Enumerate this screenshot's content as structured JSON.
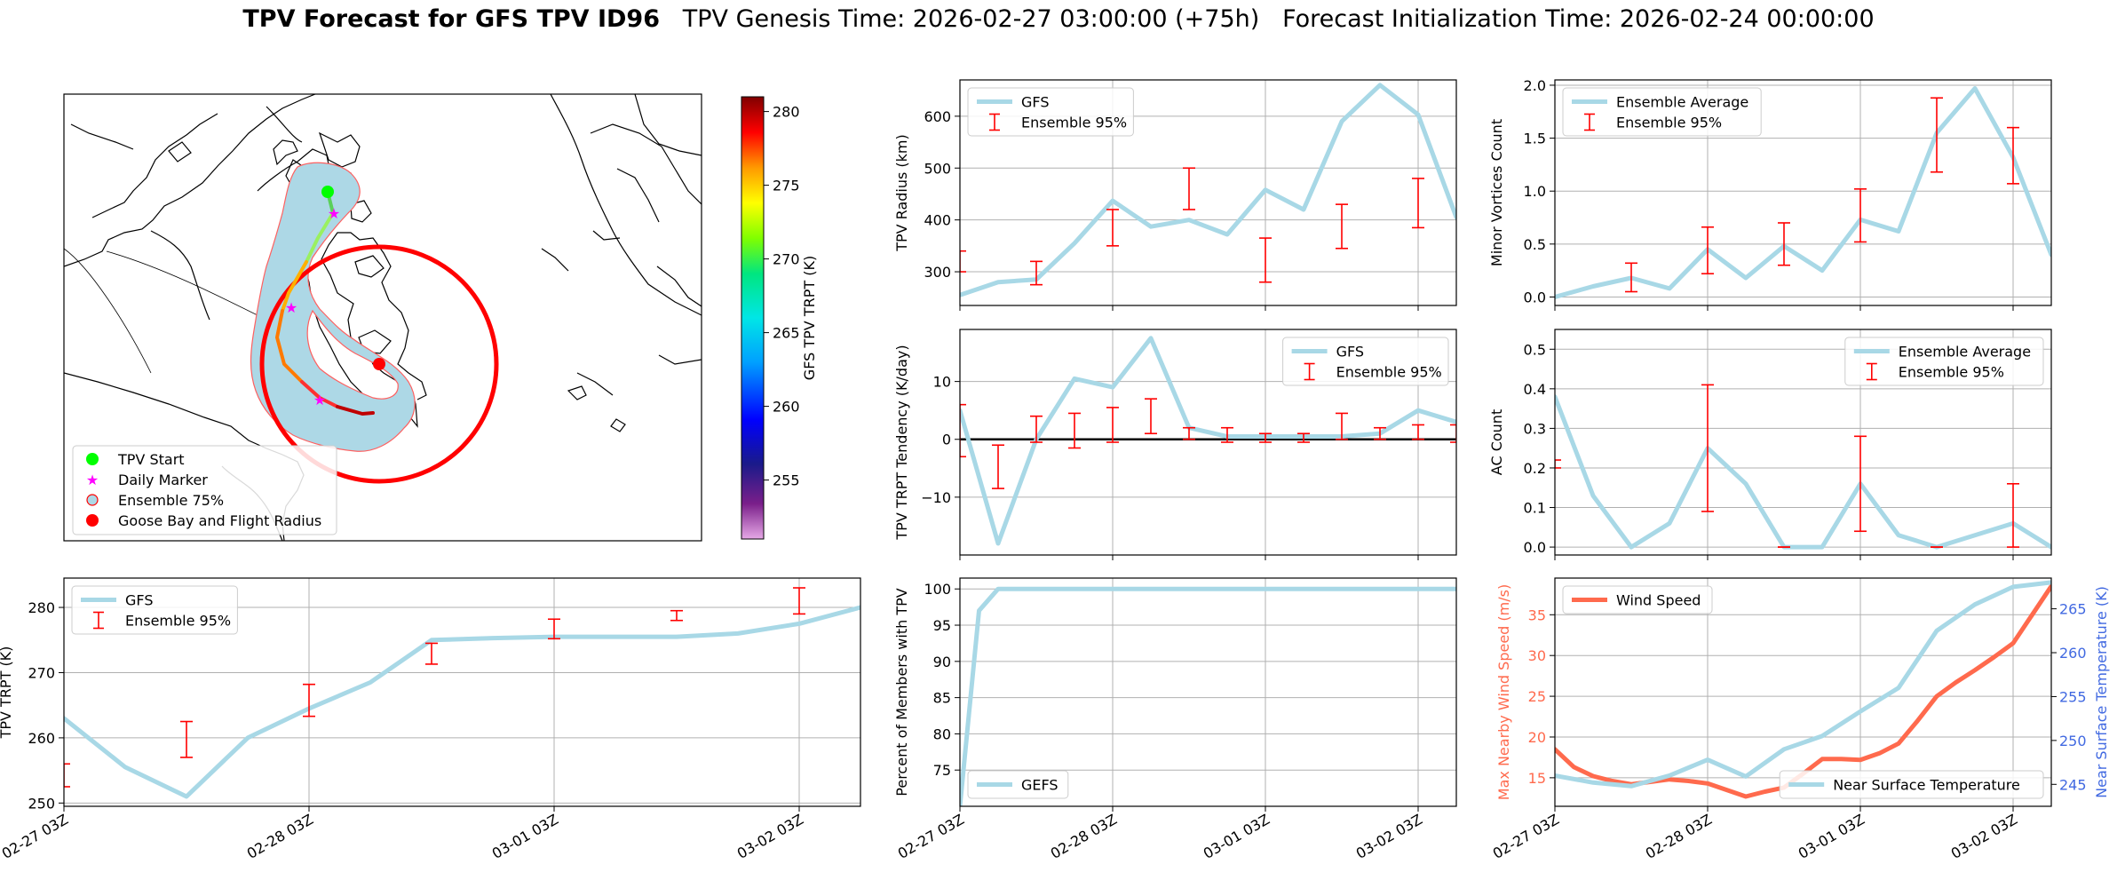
{
  "title": {
    "bold": "TPV Forecast for GFS TPV ID96",
    "genesis": "TPV Genesis Time: 2026-02-27 03:00:00 (+75h)",
    "init": "Forecast Initialization Time: 2026-02-24 00:00:00"
  },
  "colors": {
    "gfs": "#a8d8e6",
    "ensemble": "#ff0000",
    "wind": "#ff6a4d",
    "temp_axis": "#4169e1",
    "grid": "#b0b0b0"
  },
  "map": {
    "colorbar": {
      "label": "GFS TPV TRPT (K)",
      "range": [
        251,
        281
      ],
      "ticks": [
        255,
        260,
        265,
        270,
        275,
        280
      ]
    },
    "legend": [
      {
        "label": "TPV Start",
        "icon": "green-dot-icon"
      },
      {
        "label": "Daily Marker",
        "icon": "magenta-star-icon"
      },
      {
        "label": "Ensemble 75%",
        "icon": "blue-circle-icon"
      },
      {
        "label": "Goose Bay and Flight Radius",
        "icon": "red-dot-icon"
      }
    ]
  },
  "time_axis": {
    "labels": [
      "02-27 03Z",
      "02-28 03Z",
      "03-01 03Z",
      "03-02 03Z"
    ],
    "label_positions": [
      0,
      24,
      48,
      72
    ],
    "x_range": [
      0,
      78
    ]
  },
  "chart_data": [
    {
      "id": "trpt",
      "type": "line",
      "title": "",
      "xlabel": "",
      "ylabel": "TPV TRPT (K)",
      "ylim": [
        249.5,
        284.5
      ],
      "yticks": [
        250,
        260,
        270,
        280
      ],
      "legend": {
        "position": "top-left",
        "entries": [
          "GFS",
          "Ensemble 95%"
        ]
      },
      "series": [
        {
          "name": "GFS",
          "x": [
            0,
            6,
            12,
            18,
            24,
            30,
            36,
            42,
            48,
            54,
            60,
            66,
            72,
            78
          ],
          "values": [
            263,
            255.5,
            251,
            260,
            264.5,
            268.5,
            275,
            275.3,
            275.5,
            275.5,
            275.5,
            276,
            277.5,
            280
          ]
        },
        {
          "name": "Ensemble 95%",
          "type": "errorbar",
          "x": [
            0,
            12,
            24,
            36,
            48,
            60,
            72
          ],
          "low": [
            252.5,
            257,
            263.3,
            271.3,
            275.2,
            278,
            279
          ],
          "high": [
            256,
            262.5,
            268.2,
            274.5,
            278.2,
            279.5,
            283
          ]
        }
      ]
    },
    {
      "id": "radius",
      "type": "line",
      "xlabel": "",
      "ylabel": "TPV Radius (km)",
      "ylim": [
        235,
        670
      ],
      "yticks": [
        300,
        400,
        500,
        600
      ],
      "legend": {
        "position": "top-left",
        "entries": [
          "GFS",
          "Ensemble 95%"
        ]
      },
      "series": [
        {
          "name": "GFS",
          "x": [
            0,
            6,
            12,
            18,
            24,
            30,
            36,
            42,
            48,
            54,
            60,
            66,
            72,
            78
          ],
          "values": [
            255,
            280,
            285,
            355,
            437,
            387,
            400,
            372,
            458,
            420,
            590,
            660,
            603,
            405
          ]
        },
        {
          "name": "Ensemble 95%",
          "type": "errorbar",
          "x": [
            0,
            12,
            24,
            36,
            48,
            60,
            72
          ],
          "low": [
            300,
            275,
            350,
            420,
            280,
            345,
            385
          ],
          "high": [
            340,
            320,
            420,
            500,
            365,
            430,
            480
          ]
        }
      ]
    },
    {
      "id": "tendency",
      "type": "line",
      "xlabel": "",
      "ylabel": "TPV TRPT Tendency (K/day)",
      "ylim": [
        -20,
        19
      ],
      "yticks": [
        -10,
        0,
        10
      ],
      "zero_line": true,
      "legend": {
        "position": "top-right",
        "entries": [
          "GFS",
          "Ensemble 95%"
        ]
      },
      "series": [
        {
          "name": "GFS",
          "x": [
            0,
            6,
            12,
            18,
            24,
            30,
            36,
            42,
            48,
            54,
            60,
            66,
            72,
            78
          ],
          "values": [
            5,
            -18,
            0,
            10.5,
            9,
            17.5,
            2,
            0.5,
            0.5,
            0.5,
            0.5,
            1,
            5,
            3
          ]
        },
        {
          "name": "Ensemble 95%",
          "type": "errorbar",
          "x": [
            0,
            6,
            12,
            18,
            24,
            30,
            36,
            42,
            48,
            54,
            60,
            66,
            72,
            78
          ],
          "low": [
            -3,
            -8.5,
            -0.5,
            -1.5,
            -0.5,
            1,
            0,
            -0.5,
            -0.5,
            -0.5,
            0,
            0,
            0,
            -0.5
          ],
          "high": [
            6,
            -1,
            4,
            4.5,
            5.5,
            7,
            2,
            2,
            1,
            1,
            4.5,
            2,
            2.5,
            2.5
          ]
        }
      ]
    },
    {
      "id": "members",
      "type": "line",
      "xlabel": "",
      "ylabel": "Percent of Members with TPV",
      "ylim": [
        70,
        101.5
      ],
      "yticks": [
        75,
        80,
        85,
        90,
        95,
        100
      ],
      "legend": {
        "position": "bottom-left",
        "entries": [
          "GEFS"
        ]
      },
      "series": [
        {
          "name": "GEFS",
          "x": [
            0,
            3,
            6,
            78
          ],
          "values": [
            70,
            97,
            100,
            100
          ]
        }
      ]
    },
    {
      "id": "minor",
      "type": "line",
      "xlabel": "",
      "ylabel": "Minor Vortices Count",
      "ylim": [
        -0.08,
        2.05
      ],
      "yticks": [
        0.0,
        0.5,
        1.0,
        1.5,
        2.0
      ],
      "legend": {
        "position": "top-left",
        "entries": [
          "Ensemble Average",
          "Ensemble 95%"
        ]
      },
      "series": [
        {
          "name": "Ensemble Average",
          "x": [
            0,
            6,
            12,
            18,
            24,
            30,
            36,
            42,
            48,
            54,
            60,
            66,
            72,
            78
          ],
          "values": [
            0,
            0.1,
            0.18,
            0.08,
            0.45,
            0.18,
            0.48,
            0.25,
            0.73,
            0.62,
            1.55,
            1.97,
            1.32,
            0.4
          ]
        },
        {
          "name": "Ensemble 95%",
          "type": "errorbar",
          "x": [
            12,
            24,
            36,
            48,
            60,
            72
          ],
          "low": [
            0.05,
            0.22,
            0.3,
            0.52,
            1.18,
            1.07
          ],
          "high": [
            0.32,
            0.66,
            0.7,
            1.02,
            1.88,
            1.6
          ]
        }
      ]
    },
    {
      "id": "ac",
      "type": "line",
      "xlabel": "",
      "ylabel": "AC Count",
      "ylim": [
        -0.02,
        0.55
      ],
      "yticks": [
        0.0,
        0.1,
        0.2,
        0.3,
        0.4,
        0.5
      ],
      "legend": {
        "position": "top-right",
        "entries": [
          "Ensemble Average",
          "Ensemble 95%"
        ]
      },
      "series": [
        {
          "name": "Ensemble Average",
          "x": [
            0,
            6,
            12,
            18,
            24,
            30,
            36,
            42,
            48,
            54,
            60,
            66,
            72,
            78
          ],
          "values": [
            0.38,
            0.13,
            0.0,
            0.06,
            0.25,
            0.16,
            0.0,
            0.0,
            0.16,
            0.03,
            0.0,
            0.03,
            0.06,
            0.0
          ]
        },
        {
          "name": "Ensemble 95%",
          "type": "errorbar",
          "x": [
            0,
            24,
            36,
            48,
            60,
            72
          ],
          "low": [
            0.2,
            0.09,
            0.0,
            0.04,
            0.0,
            0.0
          ],
          "high": [
            0.22,
            0.41,
            0.0,
            0.28,
            0.0,
            0.16
          ]
        }
      ]
    },
    {
      "id": "wind",
      "type": "line",
      "xlabel": "",
      "ylabel": "Max Nearby Wind Speed (m/s)",
      "ylim": [
        11.5,
        39.5
      ],
      "yticks": [
        15,
        20,
        25,
        30,
        35
      ],
      "legend": {
        "position": "top-left",
        "entries": [
          "Wind Speed"
        ]
      },
      "series": [
        {
          "name": "Wind Speed",
          "x": [
            0,
            3,
            6,
            9,
            12,
            15,
            18,
            21,
            24,
            27,
            30,
            33,
            36,
            39,
            42,
            45,
            48,
            51,
            54,
            57,
            60,
            63,
            66,
            69,
            72,
            75,
            78
          ],
          "values": [
            18.5,
            16.3,
            15.2,
            14.6,
            14.2,
            14.5,
            14.8,
            14.6,
            14.3,
            13.5,
            12.7,
            13.3,
            13.8,
            15.5,
            17.3,
            17.3,
            17.2,
            18,
            19.2,
            22,
            25,
            26.7,
            28.2,
            29.8,
            31.5,
            35,
            38.5
          ]
        },
        {
          "name": "Near Surface Temperature",
          "axis": "right",
          "ylabel": "Near Surface Temperature (K)",
          "ylim": [
            242.5,
            268.5
          ],
          "yticks": [
            245,
            250,
            255,
            260,
            265
          ],
          "x": [
            0,
            6,
            12,
            18,
            24,
            30,
            36,
            42,
            48,
            54,
            60,
            66,
            72,
            78
          ],
          "values": [
            246,
            245.2,
            244.8,
            246,
            247.8,
            245.9,
            249,
            250.5,
            253.3,
            256,
            262.5,
            265.5,
            267.5,
            268
          ]
        }
      ]
    }
  ]
}
